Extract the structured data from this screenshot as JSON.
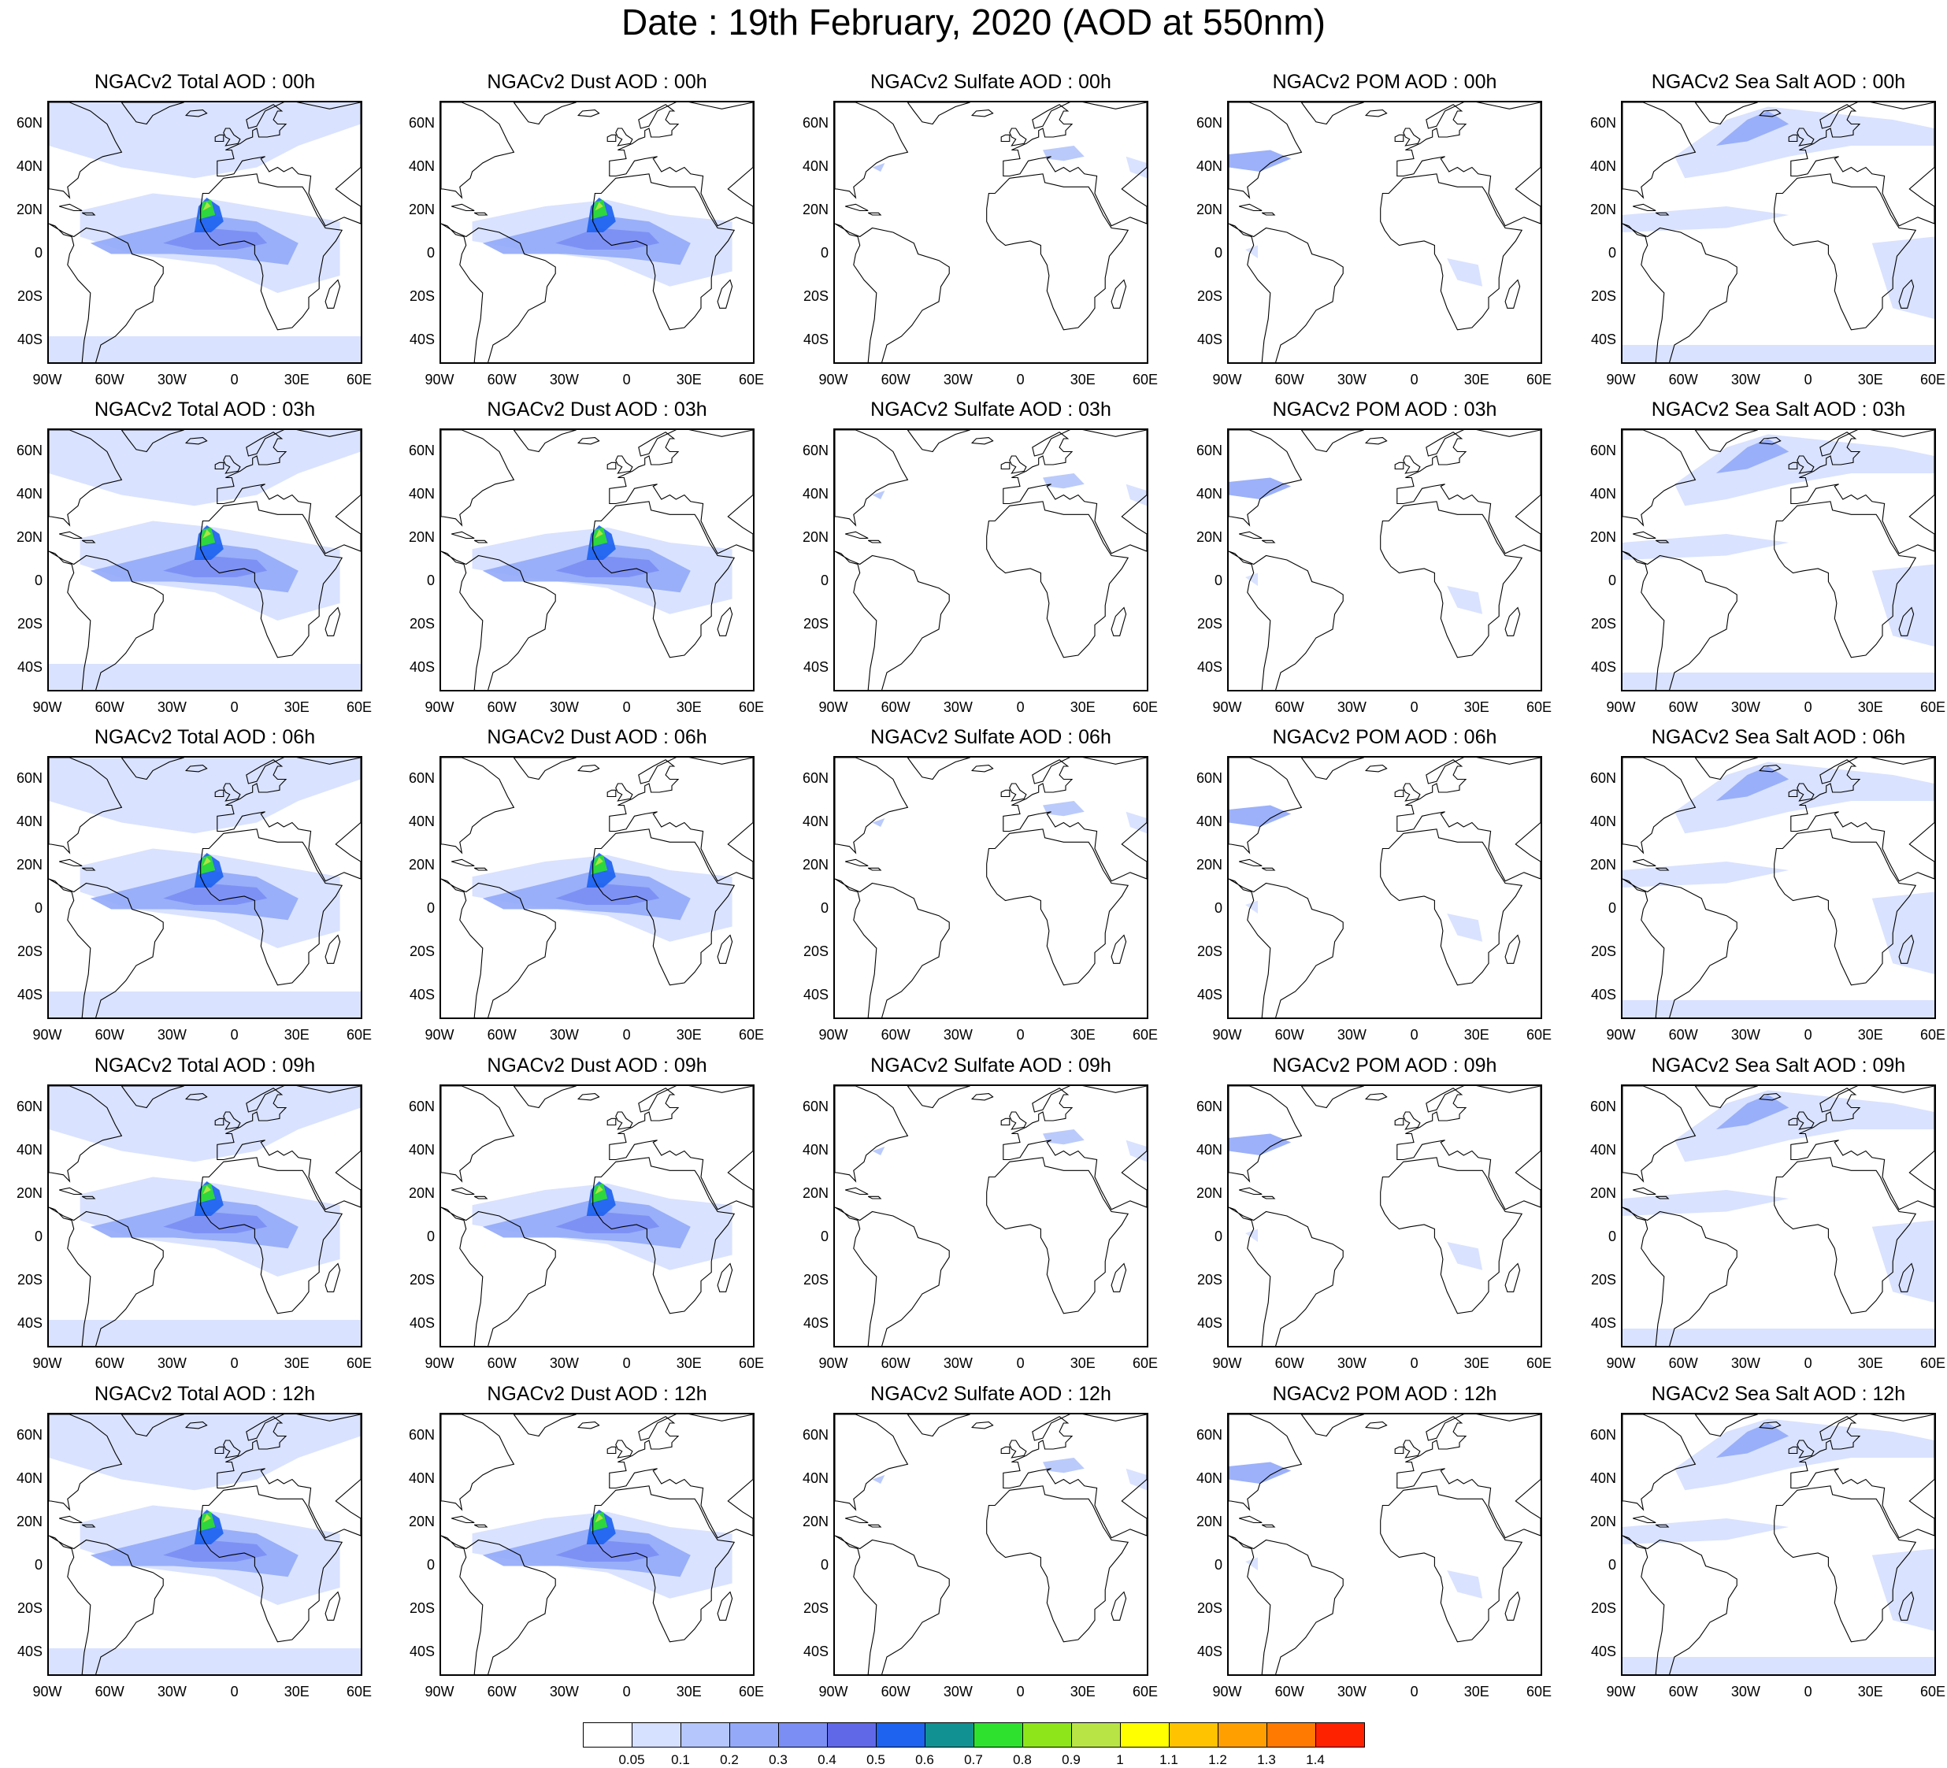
{
  "title": "Date : 19th February, 2020 (AOD at 550nm)",
  "axes": {
    "lat_labels": [
      "60N",
      "40N",
      "20N",
      "0",
      "20S",
      "40S"
    ],
    "lon_labels": [
      "90W",
      "60W",
      "30W",
      "0",
      "30E",
      "60E"
    ],
    "lon_range": [
      -90,
      60
    ],
    "lat_range": [
      -50,
      70
    ]
  },
  "panels": [
    [
      {
        "title": "NGACv2 Total AOD : 00h",
        "species": "total"
      },
      {
        "title": "NGACv2 Dust AOD : 00h",
        "species": "dust"
      },
      {
        "title": "NGACv2 Sulfate AOD : 00h",
        "species": "sulfate"
      },
      {
        "title": "NGACv2 POM AOD : 00h",
        "species": "pom"
      },
      {
        "title": "NGACv2 Sea Salt AOD : 00h",
        "species": "seasalt"
      }
    ],
    [
      {
        "title": "NGACv2 Total AOD : 03h",
        "species": "total"
      },
      {
        "title": "NGACv2 Dust AOD : 03h",
        "species": "dust"
      },
      {
        "title": "NGACv2 Sulfate AOD : 03h",
        "species": "sulfate"
      },
      {
        "title": "NGACv2 POM AOD : 03h",
        "species": "pom"
      },
      {
        "title": "NGACv2 Sea Salt AOD : 03h",
        "species": "seasalt"
      }
    ],
    [
      {
        "title": "NGACv2 Total AOD : 06h",
        "species": "total"
      },
      {
        "title": "NGACv2 Dust AOD : 06h",
        "species": "dust"
      },
      {
        "title": "NGACv2 Sulfate AOD : 06h",
        "species": "sulfate"
      },
      {
        "title": "NGACv2 POM AOD : 06h",
        "species": "pom"
      },
      {
        "title": "NGACv2 Sea Salt AOD : 06h",
        "species": "seasalt"
      }
    ],
    [
      {
        "title": "NGACv2 Total AOD : 09h",
        "species": "total"
      },
      {
        "title": "NGACv2 Dust AOD : 09h",
        "species": "dust"
      },
      {
        "title": "NGACv2 Sulfate AOD : 09h",
        "species": "sulfate"
      },
      {
        "title": "NGACv2 POM AOD : 09h",
        "species": "pom"
      },
      {
        "title": "NGACv2 Sea Salt  AOD : 09h",
        "species": "seasalt"
      }
    ],
    [
      {
        "title": "NGACv2 Total AOD  : 12h",
        "species": "total"
      },
      {
        "title": "NGACv2 Dust AOD : 12h",
        "species": "dust"
      },
      {
        "title": "NGACv2 Sulfate AOD : 12h",
        "species": "sulfate"
      },
      {
        "title": "NGACv2 POM  AOD : 12h",
        "species": "pom"
      },
      {
        "title": "NGACv2 Sea Salt  AOD : 12h",
        "species": "seasalt"
      }
    ]
  ],
  "colorbar": {
    "labels": [
      "0.05",
      "0.1",
      "0.2",
      "0.3",
      "0.4",
      "0.5",
      "0.6",
      "0.7",
      "0.8",
      "0.9",
      "1",
      "1.1",
      "1.2",
      "1.3",
      "1.4"
    ],
    "colors": [
      "#ffffff",
      "#d6e0ff",
      "#b4c6fb",
      "#94aaf8",
      "#7b8ef4",
      "#6068e8",
      "#1d63f0",
      "#119191",
      "#2ee12e",
      "#8ee519",
      "#b8e545",
      "#ffff00",
      "#ffc300",
      "#ffa000",
      "#ff7a00",
      "#ff2200"
    ]
  }
}
